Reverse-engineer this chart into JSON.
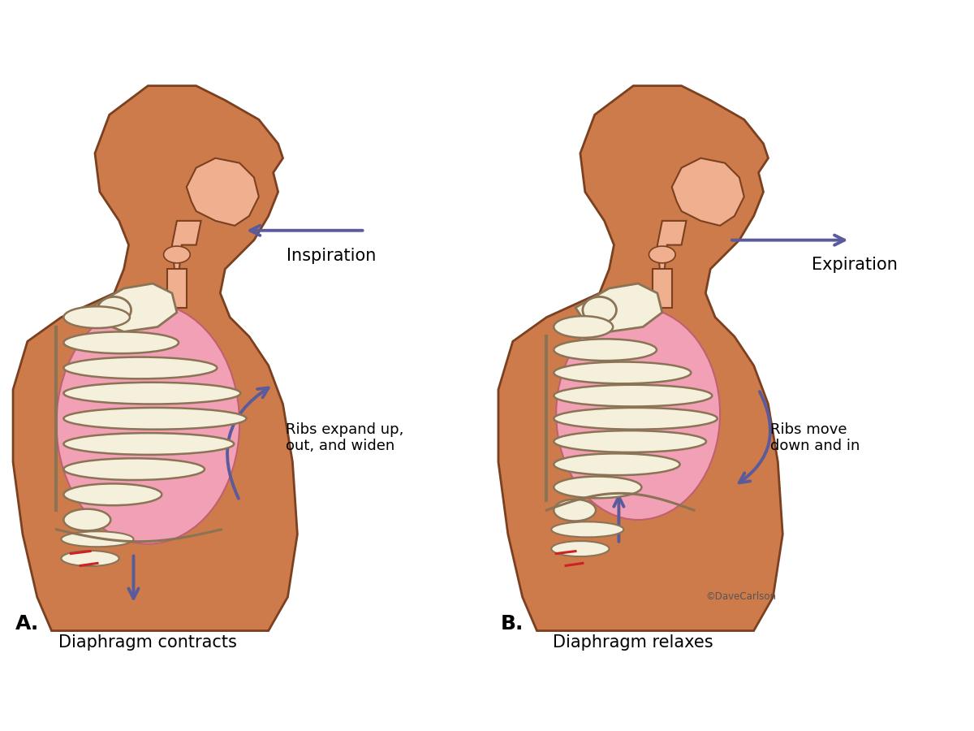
{
  "bg_color": "#ffffff",
  "body_color": "#CD7B4A",
  "body_outline": "#7A4020",
  "skin_interior": "#F0B090",
  "lung_color": "#F2A0B5",
  "lung_outline": "#C06070",
  "rib_color": "#F5F0DC",
  "rib_outline": "#8B7355",
  "arrow_color": "#5B5B9B",
  "label_A": "A.",
  "label_B": "B.",
  "title_A": "Diaphragm contracts",
  "title_B": "Diaphragm relaxes",
  "label_insp": "Inspiration",
  "label_exp": "Expiration",
  "label_ribs_A": "Ribs expand up,\nout, and widen",
  "label_ribs_B": "Ribs move\ndown and in",
  "copyright": "©DaveCarlson",
  "text_fontsize": 13,
  "label_fontsize": 15
}
